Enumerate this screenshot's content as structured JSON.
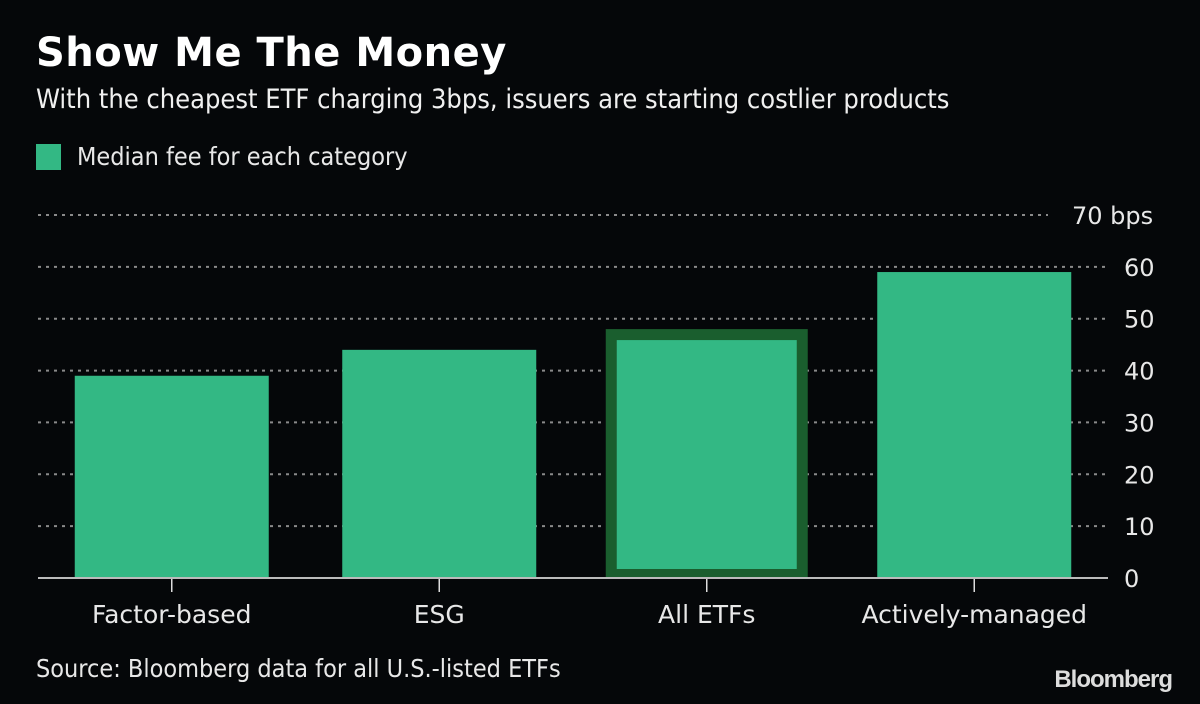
{
  "header": {
    "title": "Show Me The Money",
    "subtitle": "With the cheapest ETF charging 3bps, issuers are starting costlier products"
  },
  "legend": {
    "label": "Median fee for each category",
    "color": "#33b884"
  },
  "footer": {
    "source": "Source: Bloomberg data for all U.S.-listed ETFs",
    "brand": "Bloomberg"
  },
  "chart_data": {
    "type": "bar",
    "title": "Show Me The Money",
    "subtitle": "With the cheapest ETF charging 3bps, issuers are starting costlier products",
    "categories": [
      "Factor-based",
      "ESG",
      "All ETFs",
      "Actively-managed"
    ],
    "series": [
      {
        "name": "Median fee for each category",
        "values": [
          39,
          44,
          48,
          59
        ]
      }
    ],
    "highlighted": "All ETFs",
    "ylabel": "bps",
    "ylim": [
      0,
      70
    ],
    "yticks": [
      "0",
      "10",
      "20",
      "30",
      "40",
      "50",
      "60",
      "70 bps"
    ],
    "grid": true,
    "legend": "top-left",
    "axis_side": "right",
    "colors": {
      "bar": "#33b884",
      "highlight_border": "#1a5e2e",
      "grid": "#8a8a8a",
      "background": "#050709"
    }
  }
}
